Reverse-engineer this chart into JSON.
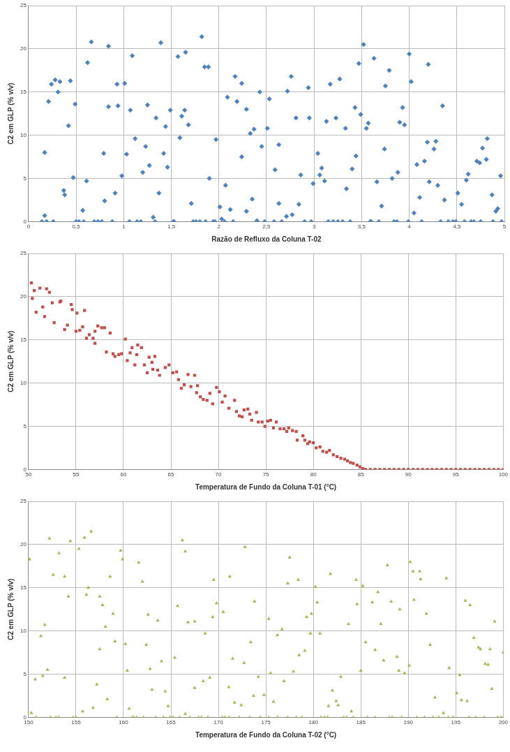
{
  "chart_data": [
    {
      "type": "scatter",
      "xlabel": "Razão de Refluxo da Coluna T-02",
      "ylabel": "C2 em GLP (% v/v)",
      "color": "#4f81bd",
      "marker": "diamond",
      "grid": true,
      "x": [
        0.17,
        0.14,
        0.19,
        0.26,
        0.17,
        0.21,
        0.24,
        0.28,
        0.31,
        0.33,
        0.37,
        0.38,
        0.42,
        0.44,
        0.47,
        0.49,
        0.5,
        0.53,
        0.58,
        0.57,
        0.61,
        0.62,
        0.66,
        0.69,
        0.73,
        0.77,
        0.79,
        0.8,
        0.84,
        0.84,
        0.88,
        0.91,
        0.93,
        0.94,
        0.98,
        1.01,
        1.03,
        1.06,
        1.07,
        1.09,
        1.12,
        1.14,
        1.18,
        1.2,
        1.23,
        1.25,
        1.27,
        1.31,
        1.33,
        1.34,
        1.37,
        1.39,
        1.42,
        1.44,
        1.46,
        1.49,
        1.52,
        1.53,
        1.57,
        1.59,
        1.61,
        1.64,
        1.65,
        1.68,
        1.71,
        1.73,
        1.76,
        1.8,
        1.86,
        1.94,
        1.96,
        1.82,
        1.85,
        1.89,
        1.9,
        1.97,
        2.01,
        2.03,
        2.06,
        2.07,
        2.09,
        2.12,
        2.15,
        2.17,
        2.19,
        2.24,
        2.24,
        2.29,
        2.29,
        2.33,
        2.37,
        2.35,
        2.4,
        2.43,
        2.45,
        2.48,
        2.51,
        2.53,
        2.58,
        2.59,
        2.63,
        2.63,
        2.66,
        2.71,
        2.72,
        2.76,
        2.77,
        2.81,
        2.84,
        2.86,
        2.9,
        2.94,
        2.95,
        2.97,
        2.99,
        3.04,
        3.06,
        3.08,
        3.11,
        3.13,
        3.15,
        3.2,
        3.25,
        3.3,
        3.38,
        3.17,
        3.23,
        3.27,
        3.33,
        3.34,
        3.4,
        3.43,
        3.44,
        3.47,
        3.49,
        3.52,
        3.55,
        3.57,
        3.59,
        3.6,
        3.68,
        3.63,
        3.66,
        3.71,
        3.74,
        3.75,
        3.79,
        3.82,
        3.84,
        3.87,
        3.88,
        3.9,
        3.93,
        3.95,
        3.99,
        4.0,
        4.02,
        4.05,
        4.08,
        4.11,
        4.13,
        4.16,
        4.19,
        4.2,
        4.21,
        4.26,
        4.28,
        4.3,
        4.33,
        4.35,
        4.37,
        4.41,
        4.46,
        4.49,
        4.58,
        4.65,
        4.68,
        4.75,
        4.88,
        4.97,
        4.51,
        4.55,
        4.6,
        4.62,
        4.71,
        4.74,
        4.77,
        4.81,
        4.82,
        4.87,
        4.91,
        4.93,
        4.96
      ],
      "values": [
        0.7,
        0,
        0,
        0,
        8.0,
        13.9,
        15.9,
        16.4,
        15.0,
        16.2,
        3.6,
        3.1,
        11.1,
        16.3,
        5.1,
        13.6,
        0,
        0,
        0,
        1.3,
        4.7,
        18.4,
        20.8,
        0,
        0,
        0,
        7.9,
        2.4,
        13.3,
        20.3,
        0,
        3.3,
        15.9,
        13.4,
        5.3,
        16.0,
        7.8,
        0,
        12.9,
        19.2,
        9.6,
        0,
        0,
        5.7,
        8.7,
        13.5,
        6.5,
        0.5,
        0,
        12.0,
        3.3,
        20.7,
        7.9,
        11.0,
        6.3,
        12.9,
        0,
        0,
        19.1,
        9.7,
        12.2,
        12.9,
        19.6,
        11.2,
        2.1,
        0,
        0,
        0,
        0,
        0,
        0,
        21.4,
        17.9,
        17.9,
        5.0,
        9.5,
        1.7,
        0.3,
        0,
        4.2,
        14.4,
        1.4,
        0,
        16.8,
        13.9,
        7.5,
        16.0,
        13.0,
        1.2,
        10.2,
        10.7,
        2.6,
        0.1,
        15.0,
        8.7,
        0,
        10.8,
        14.2,
        0,
        6.0,
        2.1,
        8.9,
        0,
        0.6,
        15.1,
        16.8,
        0.8,
        12.0,
        2.0,
        5.4,
        0,
        15.5,
        12.0,
        0,
        4.4,
        7.9,
        5.4,
        6.2,
        4.7,
        11.6,
        0,
        0,
        0,
        0,
        0,
        15.9,
        12.0,
        16.5,
        10.8,
        3.8,
        6.1,
        13.2,
        7.6,
        18.3,
        12.4,
        20.5,
        10.8,
        11.4,
        0,
        0,
        0,
        18.9,
        4.6,
        1.8,
        8.4,
        15.7,
        17.5,
        5.0,
        0,
        0,
        5.7,
        11.5,
        13.2,
        11.2,
        0,
        19.4,
        16.2,
        1.0,
        6.6,
        2.8,
        0,
        7.0,
        9.2,
        18.2,
        4.6,
        8.4,
        9.3,
        4.2,
        0,
        13.4,
        2.5,
        0,
        0,
        0,
        0,
        0,
        0,
        0,
        0,
        0,
        3.3,
        2.0,
        4.8,
        5.5,
        7.0,
        6.8,
        8.5,
        7.2,
        9.6,
        3.1,
        1.2,
        1.5,
        5.3
      ],
      "xlim": [
        0,
        5
      ],
      "xticks": [
        0,
        {
          "value": 0.5,
          "label": "0,5"
        },
        1,
        {
          "value": 1.5,
          "label": "1,5"
        },
        2,
        {
          "value": 2.5,
          "label": "2,5"
        },
        3,
        {
          "value": 3.5,
          "label": "3,5"
        },
        4,
        {
          "value": 4.5,
          "label": "4,5"
        },
        5
      ],
      "ylim": [
        0,
        25
      ],
      "yticks": [
        0,
        5,
        10,
        15,
        20,
        25
      ]
    },
    {
      "type": "scatter",
      "xlabel": "Temperatura de Fundo da Coluna T-01 (°C)",
      "ylabel": "C2 em GLP (% v/v)",
      "color": "#c0504d",
      "marker": "square",
      "grid": true,
      "x": [
        50.3,
        50.4,
        50.6,
        50.8,
        51.2,
        51.5,
        51.7,
        51.9,
        52.2,
        52.5,
        52.7,
        53.3,
        53.4,
        53.8,
        54.1,
        54.5,
        54.6,
        55.0,
        55.1,
        55.4,
        55.7,
        55.9,
        56.1,
        56.4,
        56.8,
        57.0,
        57.0,
        57.3,
        57.7,
        58.0,
        58.2,
        58.6,
        58.9,
        59.1,
        59.5,
        59.8,
        60.2,
        60.4,
        60.7,
        60.9,
        61.2,
        61.4,
        61.5,
        61.9,
        62.2,
        62.5,
        62.7,
        63.0,
        63.1,
        63.3,
        63.6,
        63.8,
        64.4,
        64.8,
        65.2,
        65.6,
        65.8,
        66.1,
        66.4,
        66.8,
        67.1,
        67.5,
        67.8,
        67.7,
        68.1,
        68.4,
        68.8,
        69.1,
        69.4,
        69.8,
        70.1,
        70.4,
        70.7,
        71.1,
        71.7,
        71.9,
        72.2,
        72.5,
        72.7,
        73.1,
        73.3,
        73.5,
        74.0,
        74.2,
        74.6,
        74.9,
        75.2,
        75.5,
        75.8,
        76.1,
        76.5,
        76.9,
        77.2,
        77.4,
        77.8,
        78.2,
        78.3,
        78.9,
        79.1,
        79.4,
        79.6,
        80.0,
        80.3,
        80.7,
        81.0,
        81.4,
        81.7,
        82.1,
        82.5,
        82.9,
        83.3,
        83.6,
        83.9,
        84.2,
        84.6,
        84.9,
        85.2,
        85.5,
        86,
        86.5,
        87,
        87.5,
        88,
        88.5,
        89,
        89.5,
        90,
        90.5,
        91,
        91.5,
        92,
        92.5,
        93,
        93.5,
        94,
        94.5,
        95,
        95.5,
        96,
        96.5,
        97,
        97.5,
        98,
        98.5,
        99,
        99.5,
        100
      ],
      "values": [
        21.6,
        19.8,
        20.7,
        18.2,
        21.0,
        18.8,
        17.7,
        20.9,
        20.5,
        19.3,
        17.0,
        19.4,
        19.5,
        16.2,
        16.7,
        19.1,
        18.5,
        16.0,
        18.1,
        16.1,
        16.5,
        18.4,
        15.2,
        15.6,
        15.2,
        14.6,
        16.0,
        16.6,
        16.4,
        16.4,
        13.6,
        15.8,
        13.4,
        13.1,
        13.3,
        13.4,
        15.1,
        12.6,
        13.5,
        14.1,
        12.1,
        13.3,
        14.4,
        14.1,
        12.1,
        11.2,
        13.0,
        12.4,
        11.6,
        13.1,
        11.5,
        10.9,
        11.8,
        12.1,
        11.2,
        11.3,
        10.4,
        9.4,
        9.8,
        11.0,
        9.6,
        10.9,
        9.7,
        8.9,
        8.4,
        8.1,
        8.0,
        8.8,
        7.6,
        9.5,
        9.0,
        7.8,
        8.5,
        7.1,
        8.0,
        6.7,
        6.2,
        6.1,
        6.9,
        7.0,
        6.4,
        5.7,
        6.6,
        5.5,
        5.5,
        5.0,
        5.6,
        5.7,
        4.8,
        5.5,
        4.7,
        4.7,
        4.4,
        4.8,
        4.5,
        4.4,
        3.4,
        3.9,
        3.4,
        3.0,
        3.2,
        3.1,
        2.5,
        2.6,
        2.1,
        2.0,
        2.2,
        1.7,
        1.5,
        1.3,
        1.2,
        1.0,
        0.8,
        0.7,
        0.5,
        0.3,
        0.1,
        0,
        0,
        0,
        0,
        0,
        0,
        0,
        0,
        0,
        0,
        0,
        0,
        0,
        0,
        0,
        0,
        0,
        0,
        0,
        0,
        0,
        0,
        0,
        0,
        0,
        0,
        0,
        0,
        0,
        0
      ],
      "xlim": [
        50,
        100
      ],
      "xticks": [
        50,
        55,
        60,
        65,
        70,
        75,
        80,
        85,
        90,
        95,
        100
      ],
      "ylim": [
        0,
        25
      ],
      "yticks": [
        0,
        5,
        10,
        15,
        20,
        25
      ]
    },
    {
      "type": "scatter",
      "xlabel": "Temperatura de Fundo da Coluna T-02 (°C)",
      "ylabel": "C2 em GLP (% v/v)",
      "color": "#9bbb59",
      "marker": "triangle",
      "grid": true,
      "x": [
        150.1,
        150.3,
        150.8,
        150.7,
        151.3,
        151.5,
        151.7,
        152.0,
        152.2,
        152.3,
        152.9,
        153.2,
        154.7,
        155.0,
        152.6,
        153.2,
        153.8,
        153.8,
        154.2,
        154.4,
        155.3,
        155.7,
        155.9,
        156.1,
        156.3,
        156.6,
        156.8,
        157.2,
        157.5,
        157.5,
        157.8,
        158.1,
        158.3,
        158.6,
        158.9,
        159.1,
        159.3,
        159.7,
        159.9,
        160.2,
        160.4,
        160.6,
        160.9,
        161.1,
        161.4,
        162.1,
        163.4,
        164.2,
        164.9,
        165.2,
        165.9,
        167.0,
        167.9,
        168.2,
        168.9,
        170.4,
        170.7,
        171.1,
        172.2,
        173.3,
        174.4,
        175.3,
        161.6,
        162.0,
        162.4,
        162.6,
        162.8,
        163.0,
        163.6,
        164.0,
        164.4,
        164.7,
        165.4,
        165.7,
        166.2,
        166.5,
        166.5,
        166.8,
        167.5,
        167.5,
        168.4,
        168.6,
        169.1,
        169.4,
        169.5,
        169.8,
        170.5,
        171.1,
        171.2,
        171.5,
        171.7,
        172.4,
        172.7,
        172.8,
        173.4,
        173.7,
        173.8,
        174.2,
        174.8,
        175.3,
        175.5,
        175.8,
        176.2,
        177.3,
        178.2,
        178.8,
        180.8,
        181.2,
        181.5,
        183.2,
        183.5,
        184.2,
        185.7,
        186.5,
        188.0,
        188.3,
        189.3,
        190.9,
        191.7,
        192.6,
        193.2,
        194.2,
        194.7,
        196.4,
        197.1,
        198.0,
        199.4,
        199.8,
        176.2,
        176.7,
        176.9,
        177.3,
        177.5,
        177.9,
        178.4,
        178.5,
        179.1,
        179.3,
        179.7,
        179.8,
        180.2,
        180.4,
        180.7,
        181.6,
        181.8,
        182.0,
        182.4,
        182.6,
        182.9,
        183.7,
        184.0,
        184.5,
        184.6,
        185.0,
        185.2,
        185.5,
        186.2,
        186.5,
        186.8,
        187.1,
        187.4,
        187.8,
        188.2,
        188.8,
        189.0,
        189.1,
        189.6,
        190.1,
        190.2,
        190.5,
        190.6,
        191.2,
        191.3,
        191.9,
        192.3,
        192.8,
        193.7,
        194.0,
        194.3,
        195.1,
        195.4,
        195.6,
        196.0,
        196.2,
        196.5,
        196.9,
        197.4,
        197.6,
        198.1,
        198.4,
        198.6,
        198.8,
        199.1,
        200.0
      ],
      "values": [
        18.3,
        0.5,
        0,
        4.4,
        9.4,
        4.8,
        10.7,
        5.5,
        20.7,
        0,
        0,
        0,
        0,
        0,
        16.5,
        19.0,
        16.3,
        4.6,
        14.0,
        20.4,
        19.5,
        0.7,
        20.8,
        14.2,
        15.0,
        21.5,
        1.1,
        3.8,
        7.9,
        14.0,
        13.0,
        10.5,
        2.1,
        16.3,
        12.0,
        8.8,
        0,
        19.3,
        18.3,
        8.5,
        5.4,
        1.0,
        0,
        0,
        0,
        0,
        0,
        0,
        0,
        0,
        0,
        0,
        0,
        0,
        0,
        0,
        0,
        0,
        0,
        0,
        0,
        0,
        17.9,
        15.7,
        8.4,
        11.9,
        5.6,
        3.2,
        11.2,
        6.5,
        3.0,
        1.3,
        6.9,
        12.9,
        20.5,
        0.4,
        19.2,
        11.0,
        11.1,
        3.4,
        4.2,
        9.7,
        4.6,
        11.6,
        15.9,
        13.2,
        12.2,
        3.5,
        16.3,
        6.8,
        1.7,
        1.4,
        6.3,
        19.7,
        8.7,
        2.5,
        13.4,
        4.7,
        2.6,
        11.4,
        5.1,
        1.8,
        0,
        0,
        0,
        0,
        0,
        0,
        0,
        0,
        0,
        0,
        0,
        0,
        0,
        0,
        0,
        0,
        0,
        0,
        0,
        0,
        0,
        0,
        0,
        0,
        0,
        0,
        9.5,
        10.2,
        4.2,
        15.5,
        18.5,
        5.3,
        15.9,
        7.2,
        7.7,
        11.6,
        9.7,
        12.0,
        15.1,
        13.3,
        9.7,
        1.3,
        16.6,
        3.1,
        1.9,
        1.4,
        4.7,
        10.8,
        0.7,
        15.9,
        13.1,
        5.4,
        15.2,
        8.7,
        13.3,
        7.8,
        14.5,
        10.8,
        6.6,
        17.6,
        13.4,
        7.0,
        5.4,
        12.5,
        5.1,
        6.0,
        18.0,
        16.9,
        13.6,
        16.9,
        16.0,
        12.0,
        8.4,
        2.3,
        0.5,
        16.1,
        5.7,
        2.8,
        4.9,
        2.0,
        13.5,
        1.9,
        13.0,
        9.2,
        8.1,
        7.9,
        6.2,
        6.1,
        7.9,
        3.3,
        11.1,
        7.5
      ],
      "xlim": [
        150,
        200
      ],
      "xticks": [
        150,
        155,
        160,
        165,
        170,
        175,
        180,
        185,
        190,
        195,
        200
      ],
      "ylim": [
        0,
        25
      ],
      "yticks": [
        0,
        5,
        10,
        15,
        20,
        25
      ]
    }
  ]
}
